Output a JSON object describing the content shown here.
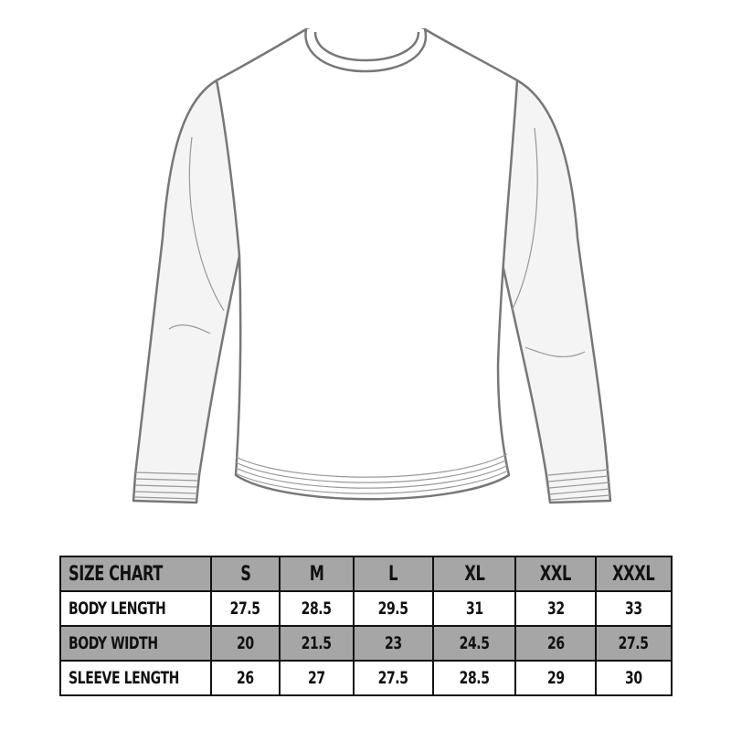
{
  "colors": {
    "header_row": "#a6a6a6",
    "alt_row": "#a6a6a6",
    "border": "#111111",
    "shirt_outline": "#777777"
  },
  "illustration": "long-sleeve-shirt",
  "table": {
    "title": "SIZE CHART",
    "sizes": [
      "S",
      "M",
      "L",
      "XL",
      "XXL",
      "XXXL"
    ],
    "rows": [
      {
        "label": "BODY LENGTH",
        "values": [
          "27.5",
          "28.5",
          "29.5",
          "31",
          "32",
          "33"
        ]
      },
      {
        "label": "BODY WIDTH",
        "values": [
          "20",
          "21.5",
          "23",
          "24.5",
          "26",
          "27.5"
        ]
      },
      {
        "label": "SLEEVE LENGTH",
        "values": [
          "26",
          "27",
          "27.5",
          "28.5",
          "29",
          "30"
        ]
      }
    ]
  }
}
